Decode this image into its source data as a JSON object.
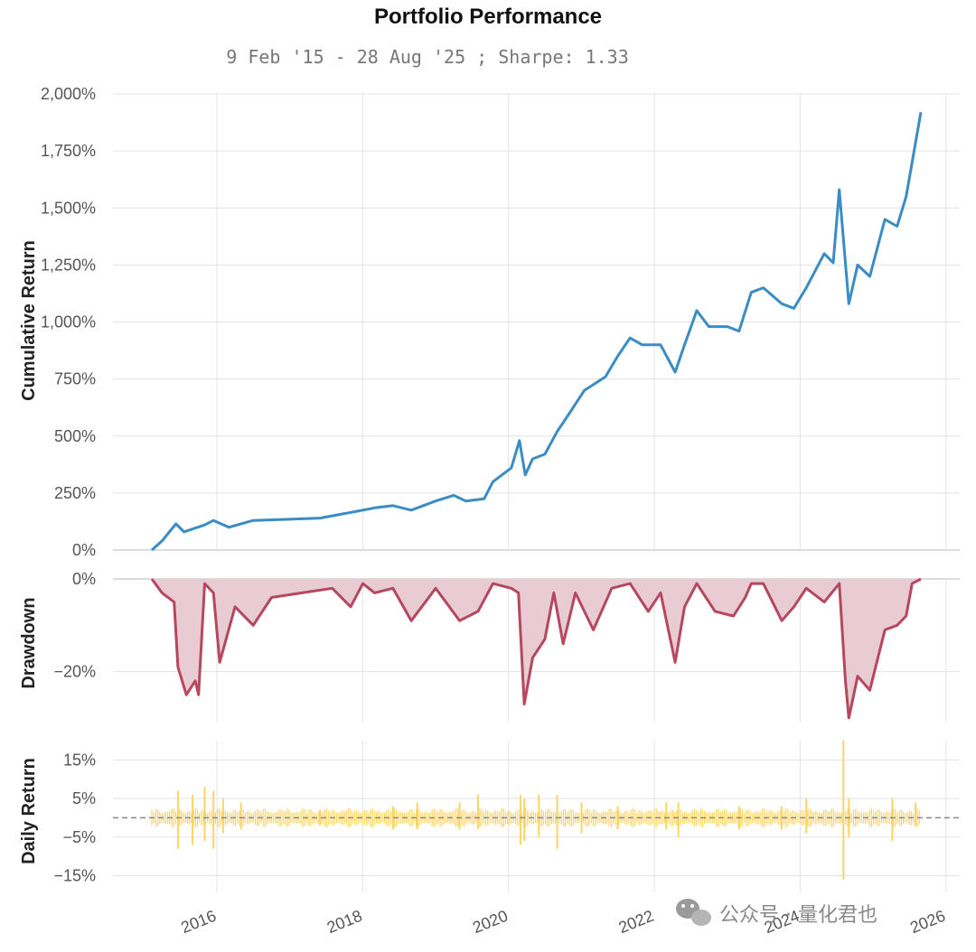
{
  "chart_data": {
    "type": "line",
    "title": "Portfolio Performance",
    "subtitle": "9 Feb '15 - 28 Aug '25 ;  Sharpe: 1.33",
    "x_range": [
      "2015-02-09",
      "2025-08-28"
    ],
    "x_ticks": [
      {
        "label": "2016",
        "date": "2016-01-01"
      },
      {
        "label": "2018",
        "date": "2018-01-01"
      },
      {
        "label": "2020",
        "date": "2020-01-01"
      },
      {
        "label": "2022",
        "date": "2022-01-01"
      },
      {
        "label": "2024",
        "date": "2024-01-01"
      },
      {
        "label": "2026",
        "date": "2026-01-01"
      }
    ],
    "grid": true,
    "panels": [
      {
        "name": "cumulative",
        "ylabel": "Cumulative Return",
        "ylim": [
          0,
          2000
        ],
        "yticks": [
          0,
          250,
          500,
          750,
          1000,
          1250,
          1500,
          1750,
          2000
        ],
        "ytick_labels": [
          "0%",
          "250%",
          "500%",
          "750%",
          "1,000%",
          "1,250%",
          "1,500%",
          "1,750%",
          "2,000%"
        ],
        "color": "#3a8cc4",
        "points": [
          [
            "2015-02-09",
            0
          ],
          [
            "2015-04-01",
            40
          ],
          [
            "2015-06-10",
            115
          ],
          [
            "2015-07-20",
            80
          ],
          [
            "2015-11-01",
            110
          ],
          [
            "2015-12-15",
            130
          ],
          [
            "2016-03-01",
            100
          ],
          [
            "2016-07-01",
            130
          ],
          [
            "2017-01-01",
            135
          ],
          [
            "2017-06-01",
            140
          ],
          [
            "2017-12-01",
            170
          ],
          [
            "2018-03-01",
            185
          ],
          [
            "2018-06-01",
            195
          ],
          [
            "2018-09-01",
            175
          ],
          [
            "2019-01-01",
            215
          ],
          [
            "2019-04-01",
            240
          ],
          [
            "2019-06-01",
            215
          ],
          [
            "2019-09-01",
            225
          ],
          [
            "2019-10-15",
            300
          ],
          [
            "2020-01-15",
            360
          ],
          [
            "2020-02-25",
            480
          ],
          [
            "2020-03-25",
            330
          ],
          [
            "2020-05-01",
            400
          ],
          [
            "2020-07-01",
            420
          ],
          [
            "2020-09-01",
            520
          ],
          [
            "2020-11-01",
            600
          ],
          [
            "2021-01-15",
            700
          ],
          [
            "2021-05-01",
            760
          ],
          [
            "2021-07-01",
            850
          ],
          [
            "2021-09-01",
            930
          ],
          [
            "2021-11-01",
            900
          ],
          [
            "2022-02-01",
            900
          ],
          [
            "2022-04-15",
            780
          ],
          [
            "2022-06-01",
            900
          ],
          [
            "2022-08-01",
            1050
          ],
          [
            "2022-10-01",
            980
          ],
          [
            "2023-01-01",
            980
          ],
          [
            "2023-03-01",
            960
          ],
          [
            "2023-05-01",
            1130
          ],
          [
            "2023-07-01",
            1150
          ],
          [
            "2023-10-01",
            1080
          ],
          [
            "2023-12-01",
            1060
          ],
          [
            "2024-02-01",
            1150
          ],
          [
            "2024-05-01",
            1300
          ],
          [
            "2024-06-15",
            1260
          ],
          [
            "2024-07-15",
            1580
          ],
          [
            "2024-09-01",
            1080
          ],
          [
            "2024-10-15",
            1250
          ],
          [
            "2024-12-15",
            1200
          ],
          [
            "2025-03-01",
            1450
          ],
          [
            "2025-05-01",
            1420
          ],
          [
            "2025-06-15",
            1550
          ],
          [
            "2025-07-15",
            1700
          ],
          [
            "2025-08-28",
            1920
          ]
        ]
      },
      {
        "name": "drawdown",
        "ylabel": "Drawdown",
        "ylim": [
          -31,
          0
        ],
        "yticks": [
          0,
          -20
        ],
        "ytick_labels": [
          "0%",
          "−20%"
        ],
        "color": "#b5475f",
        "fill": "#e9ccd3",
        "points": [
          [
            "2015-02-09",
            0
          ],
          [
            "2015-04-01",
            -3
          ],
          [
            "2015-06-01",
            -5
          ],
          [
            "2015-06-20",
            -19
          ],
          [
            "2015-08-01",
            -25
          ],
          [
            "2015-09-15",
            -22
          ],
          [
            "2015-10-01",
            -25
          ],
          [
            "2015-11-01",
            -1
          ],
          [
            "2015-12-15",
            -3
          ],
          [
            "2016-01-15",
            -18
          ],
          [
            "2016-04-01",
            -6
          ],
          [
            "2016-07-01",
            -10
          ],
          [
            "2016-10-01",
            -4
          ],
          [
            "2017-03-01",
            -3
          ],
          [
            "2017-08-01",
            -2
          ],
          [
            "2017-11-01",
            -6
          ],
          [
            "2018-01-01",
            -1
          ],
          [
            "2018-03-01",
            -3
          ],
          [
            "2018-06-01",
            -2
          ],
          [
            "2018-09-01",
            -9
          ],
          [
            "2019-01-01",
            -2
          ],
          [
            "2019-05-01",
            -9
          ],
          [
            "2019-08-01",
            -7
          ],
          [
            "2019-10-15",
            -1
          ],
          [
            "2020-01-15",
            -2
          ],
          [
            "2020-02-20",
            -3
          ],
          [
            "2020-03-20",
            -27
          ],
          [
            "2020-05-01",
            -17
          ],
          [
            "2020-07-01",
            -13
          ],
          [
            "2020-08-15",
            -3
          ],
          [
            "2020-10-01",
            -14
          ],
          [
            "2020-12-01",
            -3
          ],
          [
            "2021-03-01",
            -11
          ],
          [
            "2021-06-01",
            -2
          ],
          [
            "2021-09-01",
            -1
          ],
          [
            "2021-12-01",
            -7
          ],
          [
            "2022-02-01",
            -3
          ],
          [
            "2022-04-15",
            -18
          ],
          [
            "2022-06-01",
            -6
          ],
          [
            "2022-08-01",
            -1
          ],
          [
            "2022-11-01",
            -7
          ],
          [
            "2023-02-01",
            -8
          ],
          [
            "2023-04-01",
            -4
          ],
          [
            "2023-05-01",
            -1
          ],
          [
            "2023-07-01",
            -1
          ],
          [
            "2023-10-01",
            -9
          ],
          [
            "2023-12-01",
            -6
          ],
          [
            "2024-02-01",
            -2
          ],
          [
            "2024-05-01",
            -5
          ],
          [
            "2024-07-15",
            -1
          ],
          [
            "2024-08-15",
            -22
          ],
          [
            "2024-09-01",
            -30
          ],
          [
            "2024-10-15",
            -21
          ],
          [
            "2024-12-15",
            -24
          ],
          [
            "2025-03-01",
            -11
          ],
          [
            "2025-05-01",
            -10
          ],
          [
            "2025-06-15",
            -8
          ],
          [
            "2025-07-15",
            -1
          ],
          [
            "2025-08-28",
            0
          ]
        ]
      },
      {
        "name": "daily",
        "ylabel": "Daily Return",
        "ylim": [
          -17,
          20
        ],
        "yticks": [
          15,
          5,
          -5,
          -15
        ],
        "ytick_labels": [
          "15%",
          "5%",
          "−5%",
          "−15%"
        ],
        "zero_line": true,
        "color": "#fcd462",
        "spikes": [
          [
            "2015-06-20",
            7,
            -8
          ],
          [
            "2015-09-01",
            6,
            -7
          ],
          [
            "2015-11-01",
            8,
            -6
          ],
          [
            "2015-12-15",
            7,
            -8
          ],
          [
            "2016-02-01",
            5,
            -4
          ],
          [
            "2016-05-01",
            4,
            -3
          ],
          [
            "2017-06-01",
            2,
            -2
          ],
          [
            "2018-06-01",
            3,
            -3
          ],
          [
            "2018-10-01",
            4,
            -3
          ],
          [
            "2019-05-01",
            4,
            -3
          ],
          [
            "2019-08-01",
            6,
            -3
          ],
          [
            "2020-03-01",
            6,
            -7
          ],
          [
            "2020-03-20",
            5,
            -6
          ],
          [
            "2020-06-01",
            6,
            -5
          ],
          [
            "2020-09-01",
            6,
            -8
          ],
          [
            "2021-01-01",
            4,
            -4
          ],
          [
            "2021-07-01",
            3,
            -3
          ],
          [
            "2022-03-01",
            4,
            -3
          ],
          [
            "2022-05-01",
            4,
            -5
          ],
          [
            "2023-03-01",
            3,
            -3
          ],
          [
            "2023-10-01",
            3,
            -3
          ],
          [
            "2024-02-01",
            5,
            -4
          ],
          [
            "2024-08-05",
            20,
            -16
          ],
          [
            "2024-09-01",
            5,
            -5
          ],
          [
            "2025-04-07",
            5,
            -6
          ],
          [
            "2025-08-01",
            4,
            -2
          ]
        ]
      }
    ],
    "watermark": "公众号 · 量化君也"
  }
}
